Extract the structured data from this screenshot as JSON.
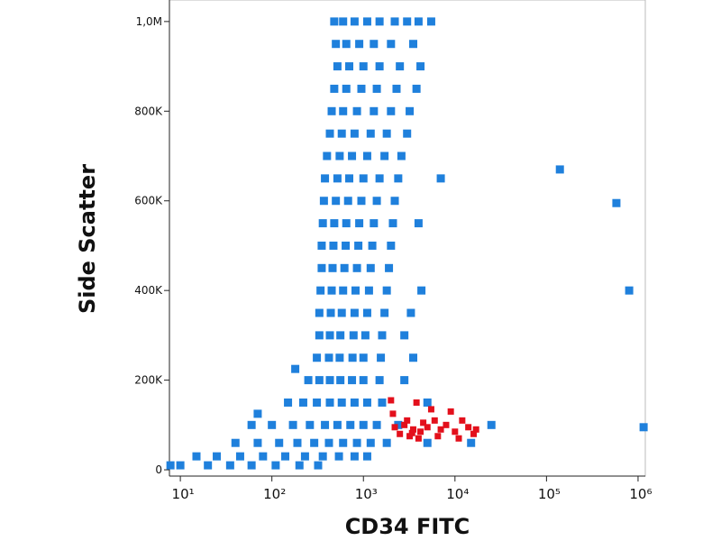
{
  "chart_data": {
    "type": "scatter",
    "xlabel": "CD34 FITC",
    "ylabel": "Side Scatter",
    "xscale": "log",
    "xlim": [
      7.6,
      1200000
    ],
    "ylim": [
      -14000,
      1048000
    ],
    "xticks": [
      {
        "value": 10,
        "label": "10¹"
      },
      {
        "value": 100,
        "label": "10²"
      },
      {
        "value": 1000,
        "label": "10³"
      },
      {
        "value": 10000,
        "label": "10⁴"
      },
      {
        "value": 100000,
        "label": "10⁵"
      },
      {
        "value": 1000000,
        "label": "10⁶"
      }
    ],
    "yticks": [
      0,
      {
        "value": 200000,
        "label": "200K"
      },
      {
        "value": 400000,
        "label": "400K"
      },
      {
        "value": 600000,
        "label": "600K"
      },
      {
        "value": 800000,
        "label": "800K"
      },
      {
        "value": 1000000,
        "label": "1,0M"
      }
    ],
    "series": [
      {
        "color": "#1f80dc",
        "x": [
          480,
          600,
          800,
          1100,
          1500,
          2200,
          3000,
          4000,
          5500,
          500,
          650,
          900,
          1300,
          2000,
          3500,
          520,
          700,
          1000,
          1500,
          2500,
          4200,
          480,
          650,
          950,
          1400,
          2300,
          3800,
          450,
          600,
          850,
          1300,
          2000,
          3200,
          430,
          580,
          800,
          1200,
          1800,
          3000,
          400,
          550,
          750,
          1100,
          1700,
          2600,
          380,
          520,
          700,
          1000,
          1500,
          2400,
          7000,
          370,
          500,
          680,
          950,
          1400,
          2200,
          360,
          480,
          650,
          900,
          1300,
          2100,
          4000,
          350,
          470,
          640,
          880,
          1250,
          2000,
          350,
          460,
          620,
          850,
          1200,
          1900,
          340,
          450,
          600,
          820,
          1150,
          1800,
          4300,
          330,
          440,
          580,
          800,
          1100,
          1700,
          3300,
          330,
          430,
          560,
          780,
          1050,
          1600,
          2800,
          310,
          420,
          550,
          760,
          1000,
          1550,
          3500,
          250,
          330,
          430,
          560,
          750,
          1000,
          1500,
          2800,
          150,
          220,
          310,
          430,
          580,
          800,
          1100,
          1600,
          5000,
          60,
          100,
          170,
          260,
          380,
          520,
          720,
          1000,
          1400,
          2400,
          25000,
          40,
          70,
          120,
          190,
          290,
          420,
          600,
          850,
          1200,
          1800,
          5000,
          15000,
          15,
          25,
          45,
          80,
          140,
          230,
          360,
          540,
          800,
          1100,
          7.8,
          10,
          20,
          35,
          60,
          110,
          200,
          320,
          180,
          70,
          140000,
          580000,
          800000,
          1150000
        ],
        "values": [
          1000000,
          1000000,
          1000000,
          1000000,
          1000000,
          1000000,
          1000000,
          1000000,
          1000000,
          950000,
          950000,
          950000,
          950000,
          950000,
          950000,
          900000,
          900000,
          900000,
          900000,
          900000,
          900000,
          850000,
          850000,
          850000,
          850000,
          850000,
          850000,
          800000,
          800000,
          800000,
          800000,
          800000,
          800000,
          750000,
          750000,
          750000,
          750000,
          750000,
          750000,
          700000,
          700000,
          700000,
          700000,
          700000,
          700000,
          650000,
          650000,
          650000,
          650000,
          650000,
          650000,
          650000,
          600000,
          600000,
          600000,
          600000,
          600000,
          600000,
          550000,
          550000,
          550000,
          550000,
          550000,
          550000,
          550000,
          500000,
          500000,
          500000,
          500000,
          500000,
          500000,
          450000,
          450000,
          450000,
          450000,
          450000,
          450000,
          400000,
          400000,
          400000,
          400000,
          400000,
          400000,
          400000,
          350000,
          350000,
          350000,
          350000,
          350000,
          350000,
          350000,
          300000,
          300000,
          300000,
          300000,
          300000,
          300000,
          300000,
          250000,
          250000,
          250000,
          250000,
          250000,
          250000,
          250000,
          200000,
          200000,
          200000,
          200000,
          200000,
          200000,
          200000,
          200000,
          150000,
          150000,
          150000,
          150000,
          150000,
          150000,
          150000,
          150000,
          150000,
          100000,
          100000,
          100000,
          100000,
          100000,
          100000,
          100000,
          100000,
          100000,
          100000,
          100000,
          60000,
          60000,
          60000,
          60000,
          60000,
          60000,
          60000,
          60000,
          60000,
          60000,
          60000,
          60000,
          30000,
          30000,
          30000,
          30000,
          30000,
          30000,
          30000,
          30000,
          30000,
          30000,
          10000,
          10000,
          10000,
          10000,
          10000,
          10000,
          10000,
          10000,
          225000,
          125000,
          670000,
          595000,
          400000,
          95000
        ]
      },
      {
        "color": "#e3101c",
        "x": [
          2000,
          2100,
          3800,
          5500,
          2200,
          2800,
          3000,
          3500,
          4500,
          5000,
          6000,
          7000,
          8000,
          9000,
          10000,
          12000,
          14000,
          16000,
          17000,
          2500,
          3200,
          4000,
          6500,
          11000,
          4200,
          3400
        ],
        "values": [
          155000,
          125000,
          150000,
          135000,
          95000,
          100000,
          110000,
          90000,
          105000,
          95000,
          110000,
          90000,
          100000,
          130000,
          85000,
          110000,
          95000,
          80000,
          90000,
          80000,
          75000,
          70000,
          75000,
          70000,
          85000,
          82000
        ]
      }
    ]
  }
}
